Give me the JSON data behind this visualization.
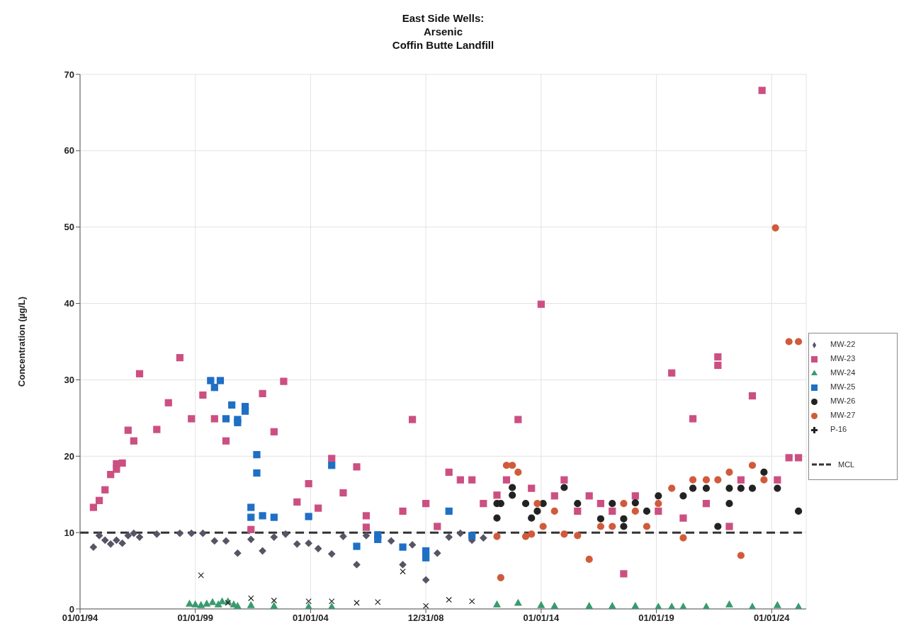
{
  "chart_data": {
    "type": "scatter",
    "title": "East Side Wells:\nArsenic\nCoffin Butte Landfill",
    "ylabel": "Concentration (µg/L)",
    "xlim": [
      "1994-01-01",
      "2025-07-01"
    ],
    "xticks": [
      {
        "value": "1994-01-01",
        "label": "01/01/94"
      },
      {
        "value": "1999-01-01",
        "label": "01/01/99"
      },
      {
        "value": "2004-01-01",
        "label": "01/01/04"
      },
      {
        "value": "2008-12-31",
        "label": "12/31/08"
      },
      {
        "value": "2014-01-01",
        "label": "01/01/14"
      },
      {
        "value": "2019-01-01",
        "label": "01/01/19"
      },
      {
        "value": "2024-01-01",
        "label": "01/01/24"
      }
    ],
    "ylim": [
      0,
      70
    ],
    "yticks": [
      0,
      10,
      20,
      30,
      40,
      50,
      60,
      70
    ],
    "grid": true,
    "legend": "right",
    "ref_lines": [
      {
        "axis": "y",
        "value": 10,
        "label": "MCL",
        "color": "#333333",
        "line_style": "dashed"
      }
    ],
    "series": [
      {
        "name": "MW-22",
        "color": "#555566",
        "marker": "diamond",
        "x": [
          "1994-08",
          "1994-11",
          "1995-02",
          "1995-05",
          "1995-08",
          "1995-11",
          "1996-02",
          "1996-05",
          "1996-08",
          "1997-05",
          "1998-05",
          "1998-11",
          "1999-05",
          "1999-11",
          "2000-05",
          "2000-11",
          "2001-06",
          "2001-12",
          "2002-06",
          "2002-12",
          "2003-06",
          "2003-12",
          "2004-05",
          "2004-12",
          "2005-06",
          "2006-01",
          "2006-06",
          "2007-07",
          "2008-01",
          "2008-06",
          "2009-01",
          "2009-07",
          "2010-01",
          "2010-07",
          "2011-01",
          "2011-07"
        ],
        "values": [
          8.1,
          9.6,
          9.0,
          8.5,
          9.0,
          8.6,
          9.6,
          9.9,
          9.4,
          9.8,
          9.9,
          9.9,
          9.9,
          8.9,
          8.9,
          7.3,
          9.1,
          7.6,
          9.4,
          9.8,
          8.5,
          8.6,
          7.9,
          7.2,
          9.5,
          5.8,
          9.6,
          8.9,
          5.8,
          8.4,
          3.8,
          7.3,
          9.4,
          9.9,
          9.0,
          9.3
        ]
      },
      {
        "name": "MW-23",
        "color": "#cc4f82",
        "marker": "square",
        "x": [
          "1994-08",
          "1994-11",
          "1995-02",
          "1995-05",
          "1995-08",
          "1995-08",
          "1995-11",
          "1996-02",
          "1996-05",
          "1996-08",
          "1997-05",
          "1997-11",
          "1998-05",
          "1998-11",
          "1999-05",
          "1999-11",
          "2000-05",
          "2001-06",
          "2001-12",
          "2002-06",
          "2002-11",
          "2003-06",
          "2003-12",
          "2004-05",
          "2004-12",
          "2005-06",
          "2006-01",
          "2006-06",
          "2006-06",
          "2008-01",
          "2008-06",
          "2009-01",
          "2009-07",
          "2010-01",
          "2010-07",
          "2011-01",
          "2011-07",
          "2012-02",
          "2012-07",
          "2013-01",
          "2013-08",
          "2014-01",
          "2014-08",
          "2015-01",
          "2015-08",
          "2016-02",
          "2016-08",
          "2017-02",
          "2017-08",
          "2018-02",
          "2019-02",
          "2019-09",
          "2020-03",
          "2020-08",
          "2021-03",
          "2021-09",
          "2021-09",
          "2022-03",
          "2022-09",
          "2023-03",
          "2023-08",
          "2024-04",
          "2024-10",
          "2025-03"
        ],
        "values": [
          13.3,
          14.2,
          15.6,
          17.6,
          18.3,
          19.0,
          19.1,
          23.4,
          22.0,
          30.8,
          23.5,
          27.0,
          32.9,
          24.9,
          28.0,
          24.9,
          22.0,
          10.4,
          28.2,
          23.2,
          29.8,
          14.0,
          16.4,
          13.2,
          19.7,
          15.2,
          18.6,
          12.2,
          10.7,
          12.8,
          24.8,
          13.8,
          10.8,
          17.9,
          16.9,
          16.9,
          13.8,
          14.9,
          16.9,
          24.8,
          15.8,
          39.9,
          14.8,
          16.9,
          12.8,
          14.8,
          13.8,
          12.8,
          4.6,
          14.8,
          12.8,
          30.9,
          11.9,
          24.9,
          13.8,
          33.0,
          31.9,
          10.8,
          16.9,
          27.9,
          67.9,
          16.9,
          19.8,
          19.8
        ]
      },
      {
        "name": "MW-24",
        "color": "#3a9a70",
        "marker": "triangle",
        "x": [
          "1998-10",
          "1999-01",
          "1999-04",
          "1999-07",
          "1999-10",
          "2000-01",
          "2000-03",
          "2000-06",
          "2000-09",
          "2000-11",
          "2001-06",
          "2002-06",
          "2003-12",
          "2004-12",
          "2012-02",
          "2013-01",
          "2014-01",
          "2014-08",
          "2016-02",
          "2017-02",
          "2018-02",
          "2019-02",
          "2019-09",
          "2020-03",
          "2021-03",
          "2022-03",
          "2023-03",
          "2024-04",
          "2025-03"
        ],
        "values": [
          0.7,
          0.6,
          0.5,
          0.7,
          0.9,
          0.6,
          1.0,
          1.0,
          0.6,
          0.4,
          0.5,
          0.4,
          0.3,
          0.3,
          0.6,
          0.8,
          0.5,
          0.4,
          0.4,
          0.4,
          0.4,
          0.3,
          0.3,
          0.3,
          0.3,
          0.6,
          0.3,
          0.5,
          0.3
        ]
      },
      {
        "name": "MW-25",
        "color": "#1f6fc4",
        "marker": "square",
        "x": [
          "1999-09",
          "1999-11",
          "2000-02",
          "2000-05",
          "2000-08",
          "2000-11",
          "2000-11",
          "2001-03",
          "2001-03",
          "2001-09",
          "2001-09",
          "2001-06",
          "2001-06",
          "2001-12",
          "2002-06",
          "2003-12",
          "2004-12",
          "2006-01",
          "2006-12",
          "2006-12",
          "2008-01",
          "2009-01",
          "2009-01",
          "2010-01",
          "2011-01"
        ],
        "values": [
          29.9,
          29.0,
          29.9,
          24.9,
          26.7,
          24.8,
          24.4,
          26.5,
          25.9,
          20.2,
          17.8,
          13.3,
          12.0,
          12.2,
          12.0,
          12.1,
          18.8,
          8.2,
          9.7,
          9.1,
          8.1,
          7.6,
          6.7,
          12.8,
          9.6
        ]
      },
      {
        "name": "MW-26",
        "color": "#222222",
        "marker": "circle",
        "x": [
          "2012-02",
          "2012-02",
          "2012-04",
          "2012-10",
          "2012-10",
          "2013-05",
          "2013-08",
          "2013-11",
          "2014-02",
          "2015-01",
          "2015-08",
          "2016-08",
          "2017-02",
          "2017-08",
          "2017-08",
          "2018-02",
          "2018-08",
          "2019-02",
          "2020-03",
          "2020-08",
          "2021-03",
          "2021-09",
          "2022-03",
          "2022-03",
          "2022-09",
          "2023-03",
          "2023-09",
          "2024-04",
          "2025-03"
        ],
        "values": [
          11.9,
          13.8,
          13.8,
          15.9,
          14.9,
          13.8,
          11.9,
          12.8,
          13.8,
          15.9,
          13.8,
          11.8,
          13.8,
          11.8,
          10.8,
          13.9,
          12.8,
          14.8,
          14.8,
          15.8,
          15.8,
          10.8,
          15.8,
          13.8,
          15.8,
          15.8,
          17.9,
          15.8,
          12.8
        ]
      },
      {
        "name": "MW-27",
        "color": "#d05a3a",
        "marker": "circle",
        "x": [
          "2012-02",
          "2012-04",
          "2012-07",
          "2012-10",
          "2013-01",
          "2013-05",
          "2013-08",
          "2013-11",
          "2014-02",
          "2014-08",
          "2015-01",
          "2015-08",
          "2016-02",
          "2016-08",
          "2017-02",
          "2017-08",
          "2018-02",
          "2018-08",
          "2019-02",
          "2019-09",
          "2020-03",
          "2020-08",
          "2021-03",
          "2021-09",
          "2022-03",
          "2022-09",
          "2023-03",
          "2023-09",
          "2024-03",
          "2024-10",
          "2025-03"
        ],
        "values": [
          9.5,
          4.1,
          18.8,
          18.8,
          17.9,
          9.5,
          9.8,
          13.8,
          10.8,
          12.8,
          9.8,
          9.6,
          6.5,
          10.8,
          10.8,
          13.8,
          12.8,
          10.8,
          13.8,
          15.8,
          9.3,
          16.9,
          16.9,
          16.9,
          17.9,
          7.0,
          18.8,
          16.9,
          49.9,
          35.0,
          35.0
        ]
      },
      {
        "name": "P-16",
        "color": "#222222",
        "marker": "cross",
        "x": [
          "1999-04",
          "2000-06",
          "2001-06",
          "2002-06",
          "2003-12",
          "2004-12",
          "2006-01",
          "2006-12",
          "2008-01",
          "2009-01",
          "2010-01",
          "2011-01"
        ],
        "values": [
          4.4,
          0.8,
          1.4,
          1.1,
          1.0,
          1.0,
          0.8,
          0.9,
          4.9,
          0.4,
          1.2,
          1.0
        ]
      }
    ]
  }
}
